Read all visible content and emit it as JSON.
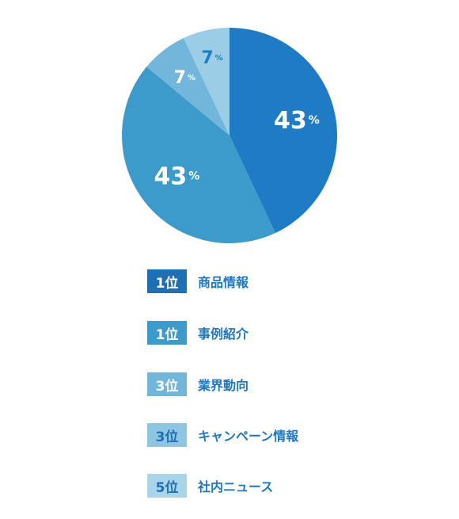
{
  "chart_data": {
    "type": "pie",
    "slices": [
      {
        "value": 43,
        "label": "43",
        "unit": "%",
        "color": "#1f7bc4",
        "label_color": "#ffffff"
      },
      {
        "value": 43,
        "label": "43",
        "unit": "%",
        "color": "#3d9bcc",
        "label_color": "#ffffff"
      },
      {
        "value": 7,
        "label": "7",
        "unit": "%",
        "color": "#72b6dc",
        "label_color": "#ffffff"
      },
      {
        "value": 7,
        "label": "7",
        "unit": "%",
        "color": "#9bcde6",
        "label_color": "#1f7bc4"
      }
    ]
  },
  "legend": [
    {
      "rank": "1位",
      "label": "商品情報",
      "badge_color": "#1f6fb5",
      "badge_text_color": "#ffffff"
    },
    {
      "rank": "1位",
      "label": "事例紹介",
      "badge_color": "#3d9bcc",
      "badge_text_color": "#ffffff"
    },
    {
      "rank": "3位",
      "label": "業界動向",
      "badge_color": "#72b6dc",
      "badge_text_color": "#ffffff"
    },
    {
      "rank": "3位",
      "label": "キャンペーン情報",
      "badge_color": "#8ec5e3",
      "badge_text_color": "#1f6fb5"
    },
    {
      "rank": "5位",
      "label": "社内ニュース",
      "badge_color": "#a9d4ea",
      "badge_text_color": "#1f6fb5"
    }
  ]
}
